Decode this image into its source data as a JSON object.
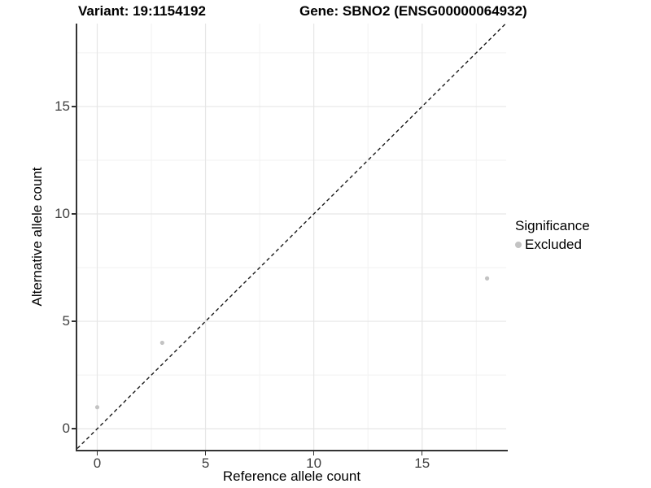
{
  "header": {
    "title_variant": "Variant: 19:1154192",
    "title_gene": "Gene: SBNO2 (ENSG00000064932)"
  },
  "legend": {
    "title": "Significance",
    "items": [
      {
        "label": "Excluded",
        "color": "#c3c3c3"
      }
    ]
  },
  "chart_data": {
    "type": "scatter",
    "title": "Variant: 19:1154192",
    "subtitle": "Gene: SBNO2 (ENSG00000064932)",
    "xlabel": "Reference allele count",
    "ylabel": "Alternative allele count",
    "xlim": [
      -0.92,
      18.88
    ],
    "ylim": [
      -0.98,
      18.86
    ],
    "x_ticks": [
      0,
      5,
      10,
      15
    ],
    "y_ticks": [
      0,
      5,
      10,
      15
    ],
    "x_minor_ticks": [
      2.5,
      7.5,
      12.5,
      17.5
    ],
    "y_minor_ticks": [
      2.5,
      7.5,
      12.5,
      17.5
    ],
    "grid": "major+minor",
    "legend_position": "right",
    "series": [
      {
        "name": "Excluded",
        "color": "#c3c3c3",
        "points": [
          [
            0,
            1
          ],
          [
            3,
            4
          ],
          [
            18,
            7
          ]
        ]
      }
    ],
    "reference_line": {
      "kind": "identity y=x",
      "style": "dashed",
      "color": "#1a1a1a",
      "span": [
        -0.92,
        18.86
      ]
    },
    "colors": {
      "grid_major": "#e6e6e6",
      "grid_minor": "#f2f2f2",
      "axis_line": "#333333",
      "tick_label": "#404040",
      "point": "#c3c3c3"
    }
  }
}
